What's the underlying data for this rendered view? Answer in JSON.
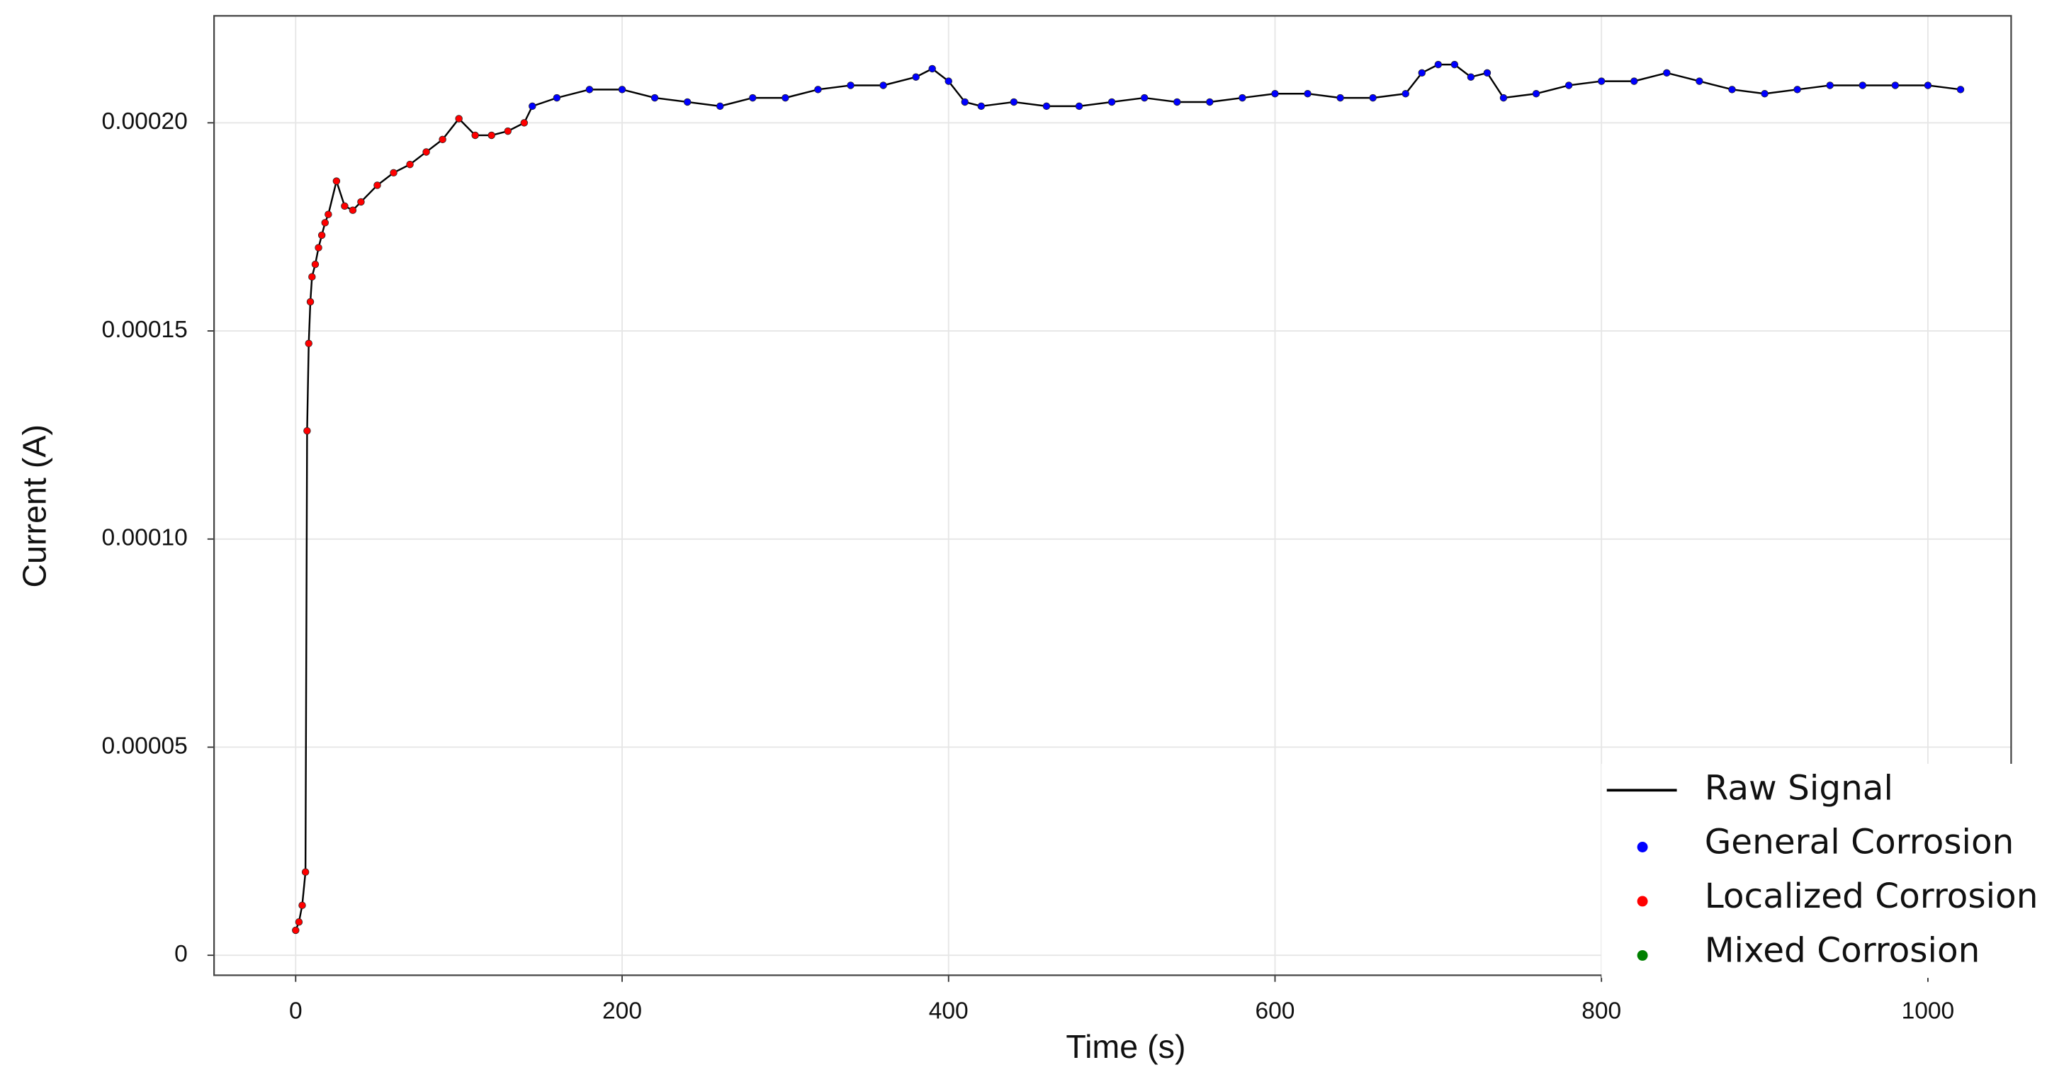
{
  "chart_data": {
    "type": "line",
    "x_label": "Time (s)",
    "y_label": "Current (A)",
    "x": [
      0,
      2,
      4,
      6,
      7,
      8,
      9,
      10,
      12,
      14,
      16,
      18,
      20,
      25,
      30,
      35,
      40,
      50,
      60,
      70,
      80,
      90,
      100,
      110,
      120,
      130,
      140,
      145,
      160,
      180,
      200,
      220,
      240,
      260,
      280,
      300,
      320,
      340,
      360,
      380,
      390,
      400,
      410,
      420,
      440,
      460,
      480,
      500,
      520,
      540,
      560,
      580,
      600,
      620,
      640,
      660,
      680,
      690,
      700,
      710,
      720,
      730,
      740,
      760,
      780,
      800,
      820,
      840,
      860,
      880,
      900,
      920,
      940,
      960,
      980,
      1000,
      1020
    ],
    "series": [
      {
        "name": "Raw Signal",
        "color": "#000000",
        "type": "line",
        "values": [
          6e-06,
          8e-06,
          1.2e-05,
          2e-05,
          0.000126,
          0.000147,
          0.000157,
          0.000163,
          0.000166,
          0.00017,
          0.000173,
          0.000176,
          0.000178,
          0.000186,
          0.00018,
          0.000179,
          0.000181,
          0.000185,
          0.000188,
          0.00019,
          0.000193,
          0.000196,
          0.000201,
          0.000197,
          0.000197,
          0.000198,
          0.0002,
          0.000204,
          0.000206,
          0.000208,
          0.000208,
          0.000206,
          0.000205,
          0.000204,
          0.000206,
          0.000206,
          0.000208,
          0.000209,
          0.000209,
          0.000211,
          0.000213,
          0.00021,
          0.000205,
          0.000204,
          0.000205,
          0.000204,
          0.000204,
          0.000205,
          0.000206,
          0.000205,
          0.000205,
          0.000206,
          0.000207,
          0.000207,
          0.000206,
          0.000206,
          0.000207,
          0.000212,
          0.000214,
          0.000214,
          0.000211,
          0.000212,
          0.000206,
          0.000207,
          0.000209,
          0.00021,
          0.00021,
          0.000212,
          0.00021,
          0.000208,
          0.000207,
          0.000208,
          0.000209,
          0.000209,
          0.000209,
          0.000209,
          0.000208
        ]
      },
      {
        "name": "General Corrosion",
        "color": "#0000ff",
        "type": "scatter",
        "x": [
          145,
          160,
          180,
          200,
          220,
          240,
          260,
          280,
          300,
          320,
          340,
          360,
          380,
          390,
          400,
          410,
          420,
          440,
          460,
          480,
          500,
          520,
          540,
          560,
          580,
          600,
          620,
          640,
          660,
          680,
          690,
          700,
          710,
          720,
          730,
          740,
          760,
          780,
          800,
          820,
          840,
          860,
          880,
          900,
          920,
          940,
          960,
          980,
          1000,
          1020
        ],
        "values": [
          0.000204,
          0.000206,
          0.000208,
          0.000208,
          0.000206,
          0.000205,
          0.000204,
          0.000206,
          0.000206,
          0.000208,
          0.000209,
          0.000209,
          0.000211,
          0.000213,
          0.00021,
          0.000205,
          0.000204,
          0.000205,
          0.000204,
          0.000204,
          0.000205,
          0.000206,
          0.000205,
          0.000205,
          0.000206,
          0.000207,
          0.000207,
          0.000206,
          0.000206,
          0.000207,
          0.000212,
          0.000214,
          0.000214,
          0.000211,
          0.000212,
          0.000206,
          0.000207,
          0.000209,
          0.00021,
          0.00021,
          0.000212,
          0.00021,
          0.000208,
          0.000207,
          0.000208,
          0.000209,
          0.000209,
          0.000209,
          0.000209,
          0.000208
        ]
      },
      {
        "name": "Localized Corrosion",
        "color": "#ff0000",
        "type": "scatter",
        "x": [
          0,
          2,
          4,
          6,
          7,
          8,
          9,
          10,
          12,
          14,
          16,
          18,
          20,
          25,
          30,
          35,
          40,
          50,
          60,
          70,
          80,
          90,
          100,
          110,
          120,
          130,
          140
        ],
        "values": [
          6e-06,
          8e-06,
          1.2e-05,
          2e-05,
          0.000126,
          0.000147,
          0.000157,
          0.000163,
          0.000166,
          0.00017,
          0.000173,
          0.000176,
          0.000178,
          0.000186,
          0.00018,
          0.000179,
          0.000181,
          0.000185,
          0.000188,
          0.00019,
          0.000193,
          0.000196,
          0.000201,
          0.000197,
          0.000197,
          0.000198,
          0.0002
        ]
      },
      {
        "name": "Mixed Corrosion",
        "color": "#008000",
        "type": "scatter",
        "x": [],
        "values": []
      }
    ],
    "xlim": [
      -50,
      1051
    ],
    "xticks": [
      0,
      200,
      400,
      600,
      800,
      1000
    ],
    "ylim": [
      -4.8e-06,
      0.0002257
    ],
    "yticks": [
      0,
      5e-05,
      {
        "value": 0.0001,
        "label": "0.00010"
      },
      0.00015,
      {
        "value": 0.0002,
        "label": "0.00020"
      }
    ],
    "grid": true,
    "legend": "lower right"
  }
}
